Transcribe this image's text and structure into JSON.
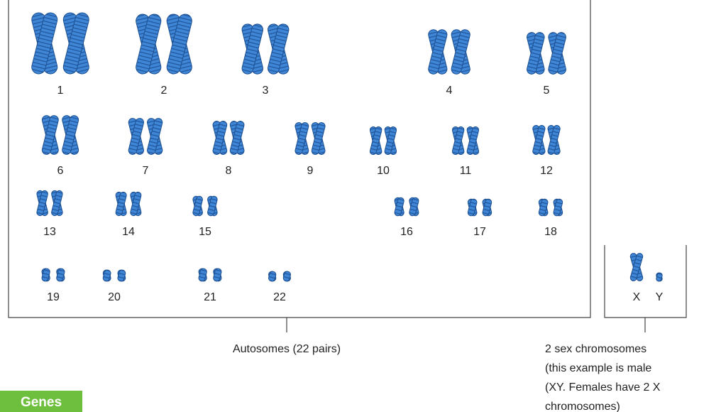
{
  "chromosomes": [
    "1",
    "2",
    "3",
    "4",
    "5",
    "6",
    "7",
    "8",
    "9",
    "10",
    "11",
    "12",
    "13",
    "14",
    "15",
    "16",
    "17",
    "18",
    "19",
    "20",
    "21",
    "22"
  ],
  "sex_chromosomes": [
    "X",
    "Y"
  ],
  "autosomes_caption": "Autosomes (22 pairs)",
  "sex_caption": [
    "2 sex chromosomes",
    "(this example is male",
    "(XY. Females have 2 X",
    "chromosomes)"
  ],
  "button": "Genes"
}
